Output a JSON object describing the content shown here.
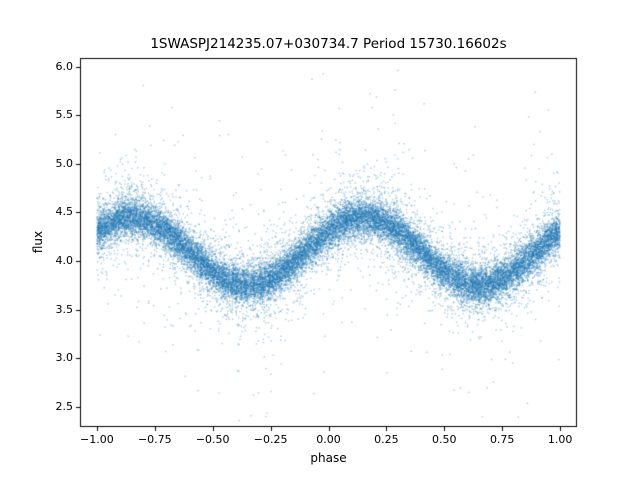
{
  "chart_data": {
    "type": "scatter",
    "title": "1SWASPJ214235.07+030734.7 Period 15730.16602s",
    "xlabel": "phase",
    "ylabel": "flux",
    "xlim": [
      -1.073,
      1.073
    ],
    "ylim": [
      2.29,
      6.09
    ],
    "x_ticks": [
      -1.0,
      -0.75,
      -0.5,
      -0.25,
      0.0,
      0.25,
      0.5,
      0.75,
      1.0
    ],
    "x_tick_labels": [
      "−1.00",
      "−0.75",
      "−0.50",
      "−0.25",
      "0.00",
      "0.25",
      "0.50",
      "0.75",
      "1.00"
    ],
    "y_ticks": [
      2.5,
      3.0,
      3.5,
      4.0,
      4.5,
      5.0,
      5.5,
      6.0
    ],
    "y_tick_labels": [
      "2.5",
      "3.0",
      "3.5",
      "4.0",
      "4.5",
      "5.0",
      "5.5",
      "6.0"
    ],
    "grid": false,
    "legend": null,
    "point_color": "#1f77b4",
    "series_model": {
      "description": "phase-folded sinusoidal light curve, two full cycles across phase [-1, 1]",
      "x_range": [
        -1.0,
        1.0
      ],
      "mean_flux": 4.1,
      "amplitude": 0.35,
      "peak_phase": 0.15,
      "cycles_per_phase_unit": 1.0,
      "core_noise_sigma": 0.09,
      "mid_noise_sigma": 0.22,
      "mid_fraction": 0.22,
      "outlier_sigma": 0.6,
      "outlier_fraction": 0.03,
      "flux_clip": [
        2.35,
        6.0
      ],
      "n_points": 24000,
      "seed": 42
    }
  }
}
